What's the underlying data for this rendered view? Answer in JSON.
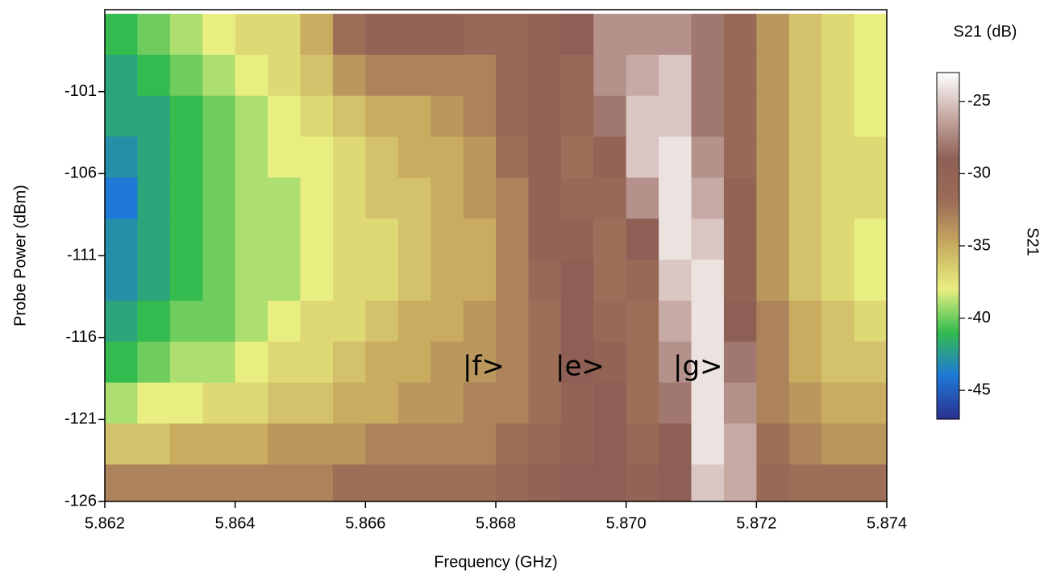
{
  "chart_data": {
    "type": "heatmap",
    "x_label": "Frequency (GHz)",
    "y_label": "Probe Power (dBm)",
    "colorbar_title": "S21 (dB)",
    "colorbar_label": "S21",
    "annotations": [
      "|f>",
      "|e>",
      "|g>"
    ],
    "xlim": [
      5.862,
      5.874
    ],
    "xticks": [
      5.862,
      5.864,
      5.866,
      5.868,
      {
        "value": 5.87,
        "label": "5.870"
      },
      5.872,
      5.874
    ],
    "ylim": [
      -126,
      -96
    ],
    "yticks": [
      -126,
      -121,
      -116,
      -111,
      -106,
      -101
    ],
    "zlim": [
      -47,
      -23
    ],
    "zticks": [
      -45,
      -40,
      -35,
      -30,
      -25
    ],
    "colorscale": [
      "#2b2f8f",
      "#1e78d6",
      "#33bb4f",
      "#e8ef80",
      "#c9ac60",
      "#9d6e58",
      "#8e5f55",
      "#c7aaa4",
      "#ffffff"
    ],
    "x": [
      5.86225,
      5.86275,
      5.86325,
      5.86375,
      5.86425,
      5.86475,
      5.86525,
      5.86575,
      5.86625,
      5.86675,
      5.86725,
      5.86775,
      5.86825,
      5.86875,
      5.86925,
      5.86975,
      5.87025,
      5.87075,
      5.87125,
      5.87175,
      5.87225,
      5.87275,
      5.87325,
      5.87375
    ],
    "y": [
      -97.5,
      -100,
      -102.5,
      -105,
      -107.5,
      -110,
      -112.5,
      -115,
      -117.5,
      -120,
      -122.5,
      -125
    ],
    "z": [
      [
        -41,
        -40,
        -39,
        -38,
        -37,
        -37,
        -35,
        -32,
        -30,
        -30,
        -30,
        -31,
        -31,
        -30,
        -29,
        -27,
        -27,
        -27,
        -28,
        -31,
        -34,
        -36,
        -37,
        -38
      ],
      [
        -42,
        -41,
        -40,
        -39,
        -38,
        -37,
        -36,
        -34,
        -33,
        -33,
        -33,
        -33,
        -31,
        -30,
        -31,
        -27,
        -26,
        -25,
        -28,
        -31,
        -34,
        -36,
        -37,
        -38
      ],
      [
        -42,
        -42,
        -41,
        -40,
        -39,
        -38,
        -37,
        -36,
        -35,
        -35,
        -34,
        -33,
        -31,
        -30,
        -31,
        -28,
        -25,
        -25,
        -28,
        -31,
        -34,
        -36,
        -37,
        -38
      ],
      [
        -43,
        -42,
        -41,
        -40,
        -39,
        -38,
        -38,
        -37,
        -36,
        -35,
        -35,
        -34,
        -32,
        -30,
        -32,
        -30,
        -25,
        -24,
        -27,
        -31,
        -34,
        -36,
        -37,
        -37
      ],
      [
        -44,
        -42,
        -41,
        -40,
        -39,
        -39,
        -38,
        -37,
        -36,
        -36,
        -35,
        -34,
        -33,
        -30,
        -31,
        -31,
        -27,
        -24,
        -26,
        -30,
        -34,
        -36,
        -37,
        -37
      ],
      [
        -43,
        -42,
        -41,
        -40,
        -39,
        -39,
        -38,
        -37,
        -37,
        -36,
        -35,
        -35,
        -33,
        -30,
        -30,
        -32,
        -29,
        -24,
        -25,
        -30,
        -34,
        -36,
        -37,
        -38
      ],
      [
        -43,
        -42,
        -41,
        -40,
        -39,
        -39,
        -38,
        -37,
        -37,
        -36,
        -35,
        -35,
        -33,
        -31,
        -29,
        -32,
        -31,
        -25,
        -24,
        -30,
        -34,
        -36,
        -37,
        -38
      ],
      [
        -42,
        -41,
        -40,
        -40,
        -39,
        -38,
        -37,
        -37,
        -36,
        -35,
        -35,
        -34,
        -33,
        -32,
        -29,
        -31,
        -32,
        -26,
        -24,
        -29,
        -33,
        -35,
        -36,
        -37
      ],
      [
        -41,
        -40,
        -39,
        -39,
        -38,
        -37,
        -37,
        -36,
        -35,
        -35,
        -34,
        -34,
        -33,
        -32,
        -29,
        -30,
        -32,
        -27,
        -24,
        -28,
        -33,
        -35,
        -36,
        -36
      ],
      [
        -39,
        -38,
        -38,
        -37,
        -37,
        -36,
        -36,
        -35,
        -35,
        -34,
        -34,
        -33,
        -33,
        -32,
        -30,
        -29,
        -32,
        -28,
        -24,
        -27,
        -33,
        -34,
        -35,
        -35
      ],
      [
        -36,
        -36,
        -35,
        -35,
        -35,
        -34,
        -34,
        -34,
        -33,
        -33,
        -33,
        -33,
        -32,
        -31,
        -30,
        -29,
        -31,
        -29,
        -24,
        -26,
        -32,
        -33,
        -34,
        -34
      ],
      [
        -33,
        -33,
        -33,
        -33,
        -33,
        -33,
        -33,
        -32,
        -32,
        -32,
        -32,
        -32,
        -31,
        -30,
        -29,
        -29,
        -30,
        -29,
        -25,
        -26,
        -31,
        -32,
        -32,
        -32
      ]
    ]
  }
}
